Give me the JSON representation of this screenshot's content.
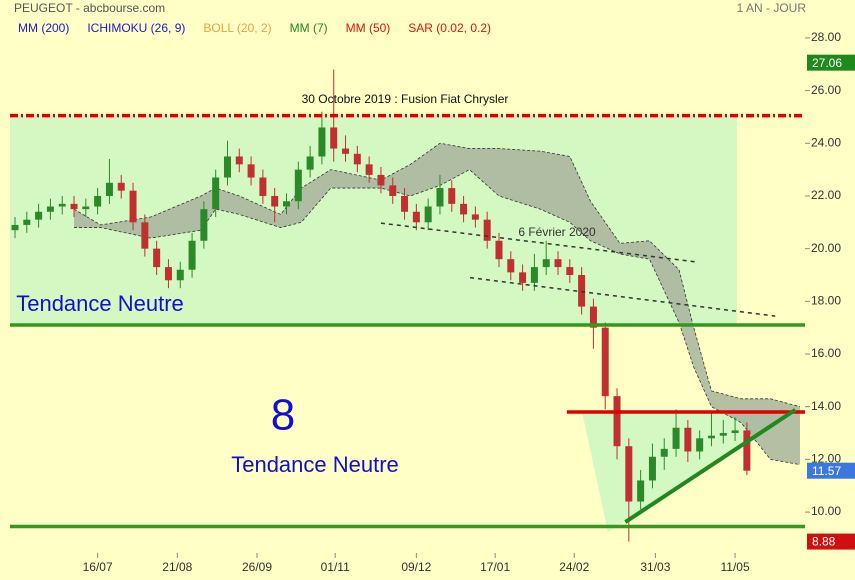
{
  "chart_data": {
    "type": "candlestick",
    "title": "PEUGEOT - abcbourse.com",
    "period": "1 AN - JOUR",
    "legend": [
      {
        "name": "MM (200)",
        "color": "#1a1ad0"
      },
      {
        "name": "ICHIMOKU (26, 9)",
        "color": "#1a1ad0"
      },
      {
        "name": "BOLL (20, 2)",
        "color": "#f0a040"
      },
      {
        "name": "MM (7)",
        "color": "#1e8a1e"
      },
      {
        "name": "MM (50)",
        "color": "#e01010"
      },
      {
        "name": "SAR (0.02, 0.2)",
        "color": "#e01010"
      }
    ],
    "up_color": "#2a8a2a",
    "down_color": "#c03030",
    "xlim": [
      0,
      266
    ],
    "xticks": [
      {
        "value": 28,
        "label": "16/07"
      },
      {
        "value": 55,
        "label": "21/08"
      },
      {
        "value": 82,
        "label": "26/09"
      },
      {
        "value": 108.5,
        "label": "01/11"
      },
      {
        "value": 136,
        "label": "09/12"
      },
      {
        "value": 162.7,
        "label": "17/01"
      },
      {
        "value": 189.5,
        "label": "24/02"
      },
      {
        "value": 217,
        "label": "31/03"
      },
      {
        "value": 244,
        "label": "11/05"
      }
    ],
    "ylim": [
      8.56,
      28.68
    ],
    "yticks": [
      {
        "value": 10,
        "label": "10.00"
      },
      {
        "value": 12,
        "label": "12.00"
      },
      {
        "value": 14,
        "label": "14.00"
      },
      {
        "value": 16,
        "label": "16.00"
      },
      {
        "value": 18,
        "label": "18.00"
      },
      {
        "value": 20,
        "label": "20.00"
      },
      {
        "value": 22,
        "label": "22.00"
      },
      {
        "value": 24,
        "label": "24.00"
      },
      {
        "value": 26,
        "label": "26.00"
      },
      {
        "value": 28,
        "label": "28.00"
      }
    ],
    "candles": [
      {
        "x": 0,
        "o": 20.7,
        "h": 21.2,
        "l": 20.4,
        "c": 20.9
      },
      {
        "x": 4,
        "o": 20.9,
        "h": 21.4,
        "l": 20.6,
        "c": 21.1
      },
      {
        "x": 8,
        "o": 21.1,
        "h": 21.7,
        "l": 20.8,
        "c": 21.4
      },
      {
        "x": 12,
        "o": 21.4,
        "h": 21.9,
        "l": 21.1,
        "c": 21.6
      },
      {
        "x": 16,
        "o": 21.6,
        "h": 22.0,
        "l": 21.3,
        "c": 21.7
      },
      {
        "x": 20,
        "o": 21.7,
        "h": 22.0,
        "l": 21.2,
        "c": 21.5
      },
      {
        "x": 24,
        "o": 21.5,
        "h": 21.9,
        "l": 21.2,
        "c": 21.6
      },
      {
        "x": 28,
        "o": 21.6,
        "h": 22.3,
        "l": 21.3,
        "c": 22.0
      },
      {
        "x": 32,
        "o": 22.0,
        "h": 23.4,
        "l": 21.7,
        "c": 22.5
      },
      {
        "x": 36,
        "o": 22.5,
        "h": 22.8,
        "l": 21.9,
        "c": 22.2
      },
      {
        "x": 40,
        "o": 22.2,
        "h": 22.5,
        "l": 20.7,
        "c": 21.0
      },
      {
        "x": 44,
        "o": 21.0,
        "h": 21.3,
        "l": 19.7,
        "c": 20.0
      },
      {
        "x": 48,
        "o": 20.0,
        "h": 20.3,
        "l": 19.0,
        "c": 19.3
      },
      {
        "x": 52,
        "o": 19.3,
        "h": 19.6,
        "l": 18.5,
        "c": 18.8
      },
      {
        "x": 56,
        "o": 18.8,
        "h": 19.5,
        "l": 18.5,
        "c": 19.2
      },
      {
        "x": 60,
        "o": 19.2,
        "h": 20.6,
        "l": 18.9,
        "c": 20.3
      },
      {
        "x": 64,
        "o": 20.3,
        "h": 21.8,
        "l": 20.0,
        "c": 21.5
      },
      {
        "x": 68,
        "o": 21.5,
        "h": 23.0,
        "l": 21.2,
        "c": 22.7
      },
      {
        "x": 72,
        "o": 22.7,
        "h": 24.1,
        "l": 22.4,
        "c": 23.5
      },
      {
        "x": 76,
        "o": 23.5,
        "h": 23.8,
        "l": 22.9,
        "c": 23.2
      },
      {
        "x": 80,
        "o": 23.2,
        "h": 23.5,
        "l": 22.4,
        "c": 22.7
      },
      {
        "x": 84,
        "o": 22.7,
        "h": 23.0,
        "l": 21.7,
        "c": 22.0
      },
      {
        "x": 88,
        "o": 22.0,
        "h": 22.3,
        "l": 21.0,
        "c": 21.6
      },
      {
        "x": 92,
        "o": 21.6,
        "h": 22.1,
        "l": 21.3,
        "c": 21.8
      },
      {
        "x": 96,
        "o": 21.8,
        "h": 23.3,
        "l": 21.5,
        "c": 23.0
      },
      {
        "x": 100,
        "o": 23.0,
        "h": 23.9,
        "l": 22.7,
        "c": 23.5
      },
      {
        "x": 104,
        "o": 23.5,
        "h": 25.2,
        "l": 23.2,
        "c": 24.6
      },
      {
        "x": 108,
        "o": 24.6,
        "h": 26.8,
        "l": 23.3,
        "c": 23.8
      },
      {
        "x": 112,
        "o": 23.8,
        "h": 24.3,
        "l": 23.3,
        "c": 23.6
      },
      {
        "x": 116,
        "o": 23.6,
        "h": 23.9,
        "l": 22.9,
        "c": 23.2
      },
      {
        "x": 120,
        "o": 23.2,
        "h": 23.5,
        "l": 22.5,
        "c": 22.8
      },
      {
        "x": 124,
        "o": 22.8,
        "h": 23.1,
        "l": 22.1,
        "c": 22.4
      },
      {
        "x": 128,
        "o": 22.4,
        "h": 22.7,
        "l": 21.7,
        "c": 22.0
      },
      {
        "x": 132,
        "o": 22.0,
        "h": 22.3,
        "l": 21.1,
        "c": 21.4
      },
      {
        "x": 136,
        "o": 21.4,
        "h": 21.7,
        "l": 20.7,
        "c": 21.0
      },
      {
        "x": 140,
        "o": 21.0,
        "h": 21.9,
        "l": 20.7,
        "c": 21.6
      },
      {
        "x": 144,
        "o": 21.6,
        "h": 22.8,
        "l": 21.3,
        "c": 22.3
      },
      {
        "x": 148,
        "o": 22.3,
        "h": 22.6,
        "l": 21.4,
        "c": 21.7
      },
      {
        "x": 152,
        "o": 21.7,
        "h": 22.0,
        "l": 21.0,
        "c": 21.3
      },
      {
        "x": 156,
        "o": 21.3,
        "h": 21.6,
        "l": 20.8,
        "c": 21.1
      },
      {
        "x": 160,
        "o": 21.1,
        "h": 21.4,
        "l": 20.0,
        "c": 20.3
      },
      {
        "x": 164,
        "o": 20.3,
        "h": 20.6,
        "l": 19.3,
        "c": 19.6
      },
      {
        "x": 168,
        "o": 19.6,
        "h": 19.9,
        "l": 18.8,
        "c": 19.1
      },
      {
        "x": 172,
        "o": 19.1,
        "h": 19.4,
        "l": 18.4,
        "c": 18.7
      },
      {
        "x": 176,
        "o": 18.7,
        "h": 19.8,
        "l": 18.4,
        "c": 19.3
      },
      {
        "x": 180,
        "o": 19.3,
        "h": 20.3,
        "l": 19.0,
        "c": 19.6
      },
      {
        "x": 184,
        "o": 19.6,
        "h": 19.9,
        "l": 19.0,
        "c": 19.3
      },
      {
        "x": 188,
        "o": 19.3,
        "h": 19.6,
        "l": 18.7,
        "c": 19.0
      },
      {
        "x": 192,
        "o": 19.0,
        "h": 19.3,
        "l": 17.5,
        "c": 17.8
      },
      {
        "x": 196,
        "o": 17.8,
        "h": 18.1,
        "l": 16.2,
        "c": 17.0
      },
      {
        "x": 200,
        "o": 17.0,
        "h": 17.2,
        "l": 13.9,
        "c": 14.4
      },
      {
        "x": 204,
        "o": 14.4,
        "h": 14.7,
        "l": 12.0,
        "c": 12.5
      },
      {
        "x": 208,
        "o": 12.5,
        "h": 12.8,
        "l": 8.88,
        "c": 10.4
      },
      {
        "x": 212,
        "o": 10.4,
        "h": 11.6,
        "l": 10.1,
        "c": 11.2
      },
      {
        "x": 216,
        "o": 11.2,
        "h": 12.6,
        "l": 10.9,
        "c": 12.1
      },
      {
        "x": 220,
        "o": 12.1,
        "h": 12.8,
        "l": 11.6,
        "c": 12.4
      },
      {
        "x": 224,
        "o": 12.4,
        "h": 13.9,
        "l": 12.1,
        "c": 13.2
      },
      {
        "x": 228,
        "o": 13.2,
        "h": 13.5,
        "l": 11.9,
        "c": 12.3
      },
      {
        "x": 232,
        "o": 12.3,
        "h": 13.1,
        "l": 12.0,
        "c": 12.8
      },
      {
        "x": 236,
        "o": 12.8,
        "h": 13.8,
        "l": 12.5,
        "c": 12.9
      },
      {
        "x": 240,
        "o": 12.9,
        "h": 13.5,
        "l": 12.6,
        "c": 13.0
      },
      {
        "x": 244,
        "o": 13.0,
        "h": 13.6,
        "l": 12.7,
        "c": 13.1
      },
      {
        "x": 248,
        "o": 13.1,
        "h": 13.4,
        "l": 11.4,
        "c": 11.57
      }
    ],
    "cloud": {
      "name": "ICHIMOKU (26, 9)",
      "color": "#a8b49c",
      "x": [
        20,
        29,
        46,
        63,
        68,
        76,
        90,
        97,
        107,
        124,
        134,
        144,
        154,
        164,
        178,
        188,
        195,
        205,
        215,
        225,
        230,
        236,
        246,
        256,
        266
      ],
      "upper": [
        21.5,
        20.9,
        21.2,
        22.0,
        22.3,
        22.0,
        21.3,
        22.3,
        23.0,
        22.6,
        23.2,
        24.0,
        23.8,
        23.8,
        23.7,
        23.5,
        21.8,
        20.2,
        20.3,
        19.2,
        17.0,
        14.6,
        14.3,
        14.3,
        14.0
      ],
      "lower": [
        20.8,
        20.8,
        20.4,
        20.7,
        21.5,
        21.3,
        20.8,
        21.0,
        22.3,
        22.3,
        22.0,
        22.4,
        23.0,
        22.0,
        21.5,
        21.0,
        20.3,
        19.8,
        19.6,
        17.2,
        15.5,
        14.0,
        13.4,
        12.0,
        11.8
      ]
    },
    "levels": [
      {
        "value": 25.05,
        "from": 0,
        "to": 266,
        "color": "#e00000",
        "style": "dashdot"
      },
      {
        "value": 17.1,
        "from": 0,
        "to": 266,
        "color": "#2e9a1e",
        "style": "solid"
      },
      {
        "value": 9.45,
        "from": 0,
        "to": 266,
        "color": "#2e9a1e",
        "style": "solid"
      },
      {
        "value": 13.8,
        "from": 187,
        "to": 266,
        "color": "#e00000",
        "style": "solid"
      }
    ],
    "trendlines": [
      {
        "x": [
          124,
          230.5
        ],
        "y": [
          20.97,
          19.5
        ],
        "color": "#333333",
        "style": "dashed"
      },
      {
        "x": [
          154.2,
          257.6
        ],
        "y": [
          18.9,
          17.44
        ],
        "color": "#333333",
        "style": "dashed"
      },
      {
        "x": [
          206.8,
          264.4
        ],
        "y": [
          9.62,
          13.88
        ],
        "color": "#1e8a1e",
        "style": "solid"
      }
    ],
    "price_tags": [
      {
        "value": 27.06,
        "color": "#1e8a1e"
      },
      {
        "value": 11.57,
        "color": "#3a78e0"
      },
      {
        "value": 8.88,
        "color": "#d01010"
      }
    ],
    "annotations": [
      "30 Octobre 2019 : Fusion Fiat Chrysler",
      "6 Février 2020",
      "Tendance Neutre",
      "8",
      "Tendance Neutre"
    ]
  }
}
